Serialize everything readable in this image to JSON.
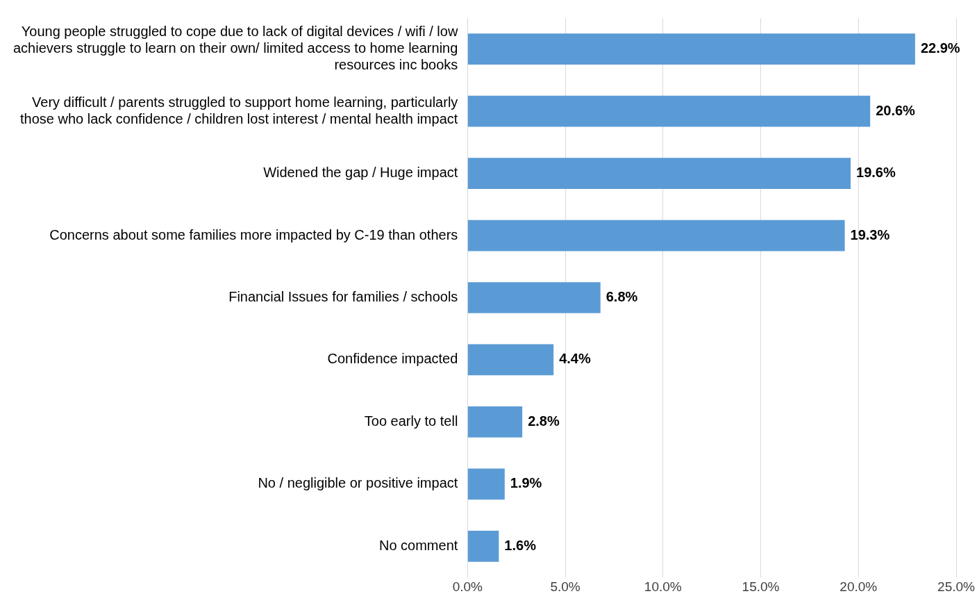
{
  "chart_data": {
    "type": "bar",
    "orientation": "horizontal",
    "categories": [
      "Young people struggled to cope due to lack of digital devices / wifi / low achievers struggle to learn on their own/ limited access to home learning resources inc books",
      "Very difficult / parents struggled to support home learning, particularly those who lack confidence / children lost interest / mental health impact",
      "Widened the gap / Huge impact",
      "Concerns about some families more impacted by C-19 than others",
      "Financial Issues for families / schools",
      "Confidence impacted",
      "Too early to tell",
      "No / negligible or positive impact",
      "No comment"
    ],
    "values": [
      22.9,
      20.6,
      19.6,
      19.3,
      6.8,
      4.4,
      2.8,
      1.9,
      1.6
    ],
    "value_labels": [
      "22.9%",
      "20.6%",
      "19.6%",
      "19.3%",
      "6.8%",
      "4.4%",
      "2.8%",
      "1.9%",
      "1.6%"
    ],
    "color": "#5b9bd5",
    "xlim": [
      0,
      25
    ],
    "xticks": [
      {
        "value": 0,
        "label": "0.0%"
      },
      {
        "value": 5,
        "label": "5.0%"
      },
      {
        "value": 10,
        "label": "10.0%"
      },
      {
        "value": 15,
        "label": "15.0%"
      },
      {
        "value": 20,
        "label": "20.0%"
      },
      {
        "value": 25,
        "label": "25.0%"
      }
    ],
    "grid": "x",
    "legend": false
  }
}
